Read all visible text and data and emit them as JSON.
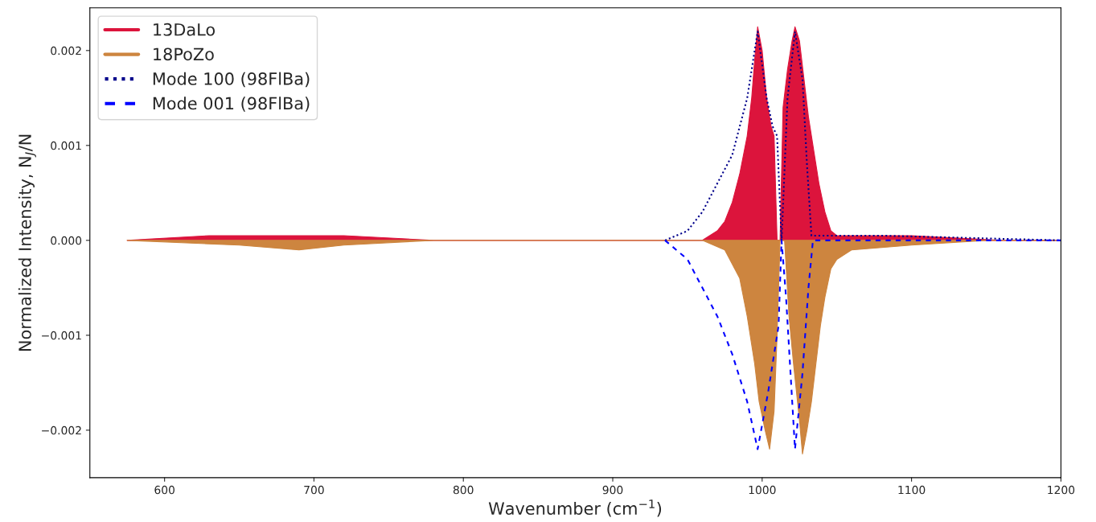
{
  "chart_data": {
    "type": "area",
    "xlabel": "Wavenumber (cm$^{−1}$)",
    "ylabel": "Normalized Intensity, N$_{J}$/N",
    "xlim": [
      550,
      1200
    ],
    "xticks": [
      600,
      700,
      800,
      900,
      1000,
      1100,
      1200
    ],
    "ylim": [
      -0.0025,
      0.00245
    ],
    "yticks": [
      {
        "value": -0.002,
        "label": "−0.002"
      },
      {
        "value": -0.001,
        "label": "−0.001"
      },
      {
        "value": 0,
        "label": "0.000"
      },
      0.001,
      0.002
    ],
    "legend": "top left",
    "grid": false,
    "series": [
      {
        "name": "13DaLo",
        "color": "#dc143c",
        "x": [
          575,
          630,
          660,
          690,
          720,
          780,
          900,
          960,
          970,
          975,
          980,
          985,
          990,
          993,
          995,
          997,
          1000,
          1003,
          1006,
          1008,
          1010,
          1012,
          1014,
          1017,
          1020,
          1022,
          1025,
          1028,
          1031,
          1035,
          1038,
          1042,
          1046,
          1050,
          1080,
          1100,
          1160,
          1200
        ],
        "values": [
          0,
          5e-05,
          5e-05,
          5e-05,
          5e-05,
          0,
          0,
          0,
          0.0001,
          0.0002,
          0.0004,
          0.0007,
          0.0011,
          0.0015,
          0.0019,
          0.00225,
          0.002,
          0.0015,
          0.0012,
          0.0011,
          0,
          0,
          0.0014,
          0.0018,
          0.0021,
          0.00225,
          0.0021,
          0.0017,
          0.0013,
          0.0009,
          0.0006,
          0.0003,
          0.0001,
          5e-05,
          5e-05,
          5e-05,
          0,
          0
        ]
      },
      {
        "name": "18PoZo",
        "color": "#cd853f",
        "x": [
          575,
          650,
          690,
          720,
          780,
          960,
          975,
          985,
          990,
          995,
          998,
          1002,
          1005,
          1008,
          1010,
          1012,
          1015,
          1018,
          1021,
          1025,
          1027,
          1030,
          1033,
          1036,
          1039,
          1042,
          1046,
          1050,
          1060,
          1100,
          1150,
          1200
        ],
        "values": [
          0,
          -5e-05,
          -0.0001,
          -5e-05,
          0,
          0,
          -0.0001,
          -0.0004,
          -0.0008,
          -0.0013,
          -0.0017,
          -0.002,
          -0.0022,
          -0.0018,
          -0.001,
          0,
          0,
          -0.0008,
          -0.0013,
          -0.0019,
          -0.00225,
          -0.002,
          -0.0017,
          -0.0013,
          -0.0009,
          -0.0006,
          -0.0003,
          -0.0002,
          -0.0001,
          -5e-05,
          0,
          0
        ]
      },
      {
        "name": "Mode 100 (98FlBa)",
        "type": "line",
        "line_style": "dotted",
        "color": "#00008b",
        "x": [
          935,
          950,
          960,
          970,
          980,
          990,
          997,
          1003,
          1007,
          1010,
          1013,
          1017,
          1022,
          1027,
          1030,
          1033,
          1080,
          1200
        ],
        "values": [
          0,
          0.0001,
          0.0003,
          0.0006,
          0.0009,
          0.0015,
          0.0022,
          0.0015,
          0.0012,
          0.0011,
          0,
          0.0015,
          0.0022,
          0.0017,
          0.0008,
          5e-05,
          5e-05,
          0
        ]
      },
      {
        "name": "Mode 001 (98FlBa)",
        "type": "line",
        "line_style": "dashed",
        "color": "#0000ff",
        "x": [
          935,
          950,
          960,
          970,
          980,
          990,
          997,
          1004,
          1008,
          1011,
          1013,
          1016,
          1022,
          1027,
          1031,
          1034,
          1200
        ],
        "values": [
          0,
          -0.0002,
          -0.0005,
          -0.0008,
          -0.0012,
          -0.0017,
          -0.0022,
          -0.0016,
          -0.0012,
          -0.0009,
          0,
          -0.0006,
          -0.0022,
          -0.0014,
          -0.0005,
          0,
          0
        ]
      }
    ]
  }
}
